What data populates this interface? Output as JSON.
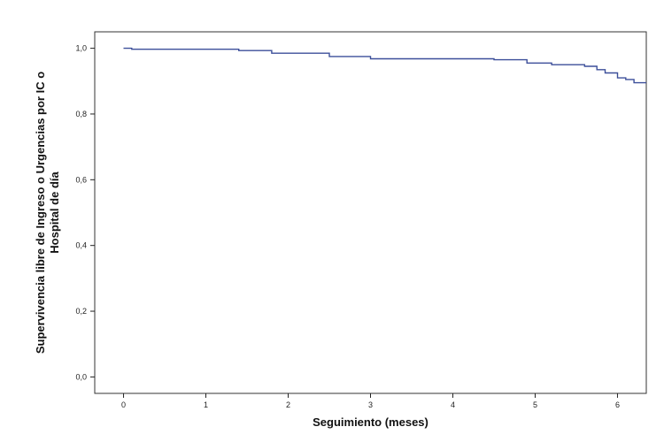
{
  "chart_data": {
    "type": "line",
    "title": "",
    "xlabel": "Seguimiento (meses)",
    "ylabel_lines": [
      "Supervivencia libre de Ingreso o Urgencias por IC o",
      "Hospital de día"
    ],
    "xlim": [
      -0.35,
      6.35
    ],
    "ylim": [
      -0.05,
      1.05
    ],
    "x_ticks": [
      0,
      1,
      2,
      3,
      4,
      5,
      6
    ],
    "x_tick_labels": [
      "0",
      "1",
      "2",
      "3",
      "4",
      "5",
      "6"
    ],
    "y_ticks": [
      0.0,
      0.2,
      0.4,
      0.6,
      0.8,
      1.0
    ],
    "y_tick_labels": [
      "0,0",
      "0,2",
      "0,4",
      "0,6",
      "0,8",
      "1,0"
    ],
    "grid": false,
    "step": true,
    "series": [
      {
        "x": [
          0,
          0.1,
          1.4,
          1.8,
          2.5,
          3.0,
          4.5,
          4.9,
          5.2,
          5.6,
          5.75,
          5.85,
          6.0,
          6.1,
          6.2,
          6.35
        ],
        "y": [
          1.0,
          0.997,
          0.993,
          0.985,
          0.975,
          0.968,
          0.965,
          0.955,
          0.95,
          0.945,
          0.935,
          0.925,
          0.91,
          0.905,
          0.895,
          0.895
        ]
      }
    ],
    "colors": {
      "line": "#3c4f9a",
      "axis": "#222222",
      "frame": "#333333"
    }
  }
}
